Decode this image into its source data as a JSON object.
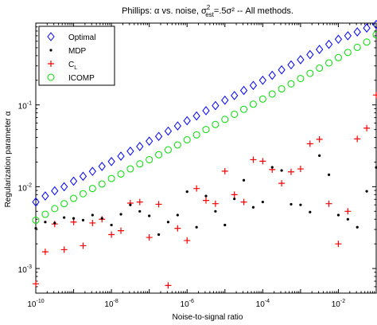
{
  "chart_data": {
    "type": "scatter",
    "title": {
      "prefix": "Phillips: ",
      "alpha": "α",
      "middle": " vs. noise, ",
      "sigma": "σ",
      "sub": "est",
      "sup": "2",
      "suffix": "=.5σ² -- All methods."
    },
    "xlabel": "Noise-to-signal ratio",
    "ylabel": "Regularization parameter α",
    "xscale": "log",
    "yscale": "log",
    "xlim": [
      1e-10,
      0.1
    ],
    "ylim": [
      0.0005,
      1.0
    ],
    "grid": false,
    "legend_position": "top-left",
    "x_ticks": [
      {
        "value": 1e-10,
        "base": "10",
        "exp": "-10"
      },
      {
        "value": 1e-08,
        "base": "10",
        "exp": "-8"
      },
      {
        "value": 1e-06,
        "base": "10",
        "exp": "-6"
      },
      {
        "value": 0.0001,
        "base": "10",
        "exp": "-4"
      },
      {
        "value": 0.01,
        "base": "10",
        "exp": "-2"
      }
    ],
    "y_ticks": [
      {
        "value": 0.001,
        "base": "10",
        "exp": "-3"
      },
      {
        "value": 0.01,
        "base": "10",
        "exp": "-2"
      },
      {
        "value": 0.1,
        "base": "10",
        "exp": "-1"
      }
    ],
    "series": [
      {
        "name": "Optimal",
        "marker": "diamond",
        "color": "#0000ff",
        "x": [
          1e-10,
          1.78e-10,
          3.16e-10,
          5.62e-10,
          1e-09,
          1.78e-09,
          3.16e-09,
          5.62e-09,
          1e-08,
          1.78e-08,
          3.16e-08,
          5.62e-08,
          1e-07,
          1.78e-07,
          3.16e-07,
          5.62e-07,
          1e-06,
          1.78e-06,
          3.16e-06,
          5.62e-06,
          1e-05,
          1.78e-05,
          3.16e-05,
          5.62e-05,
          0.0001,
          0.000178,
          0.000316,
          0.000562,
          0.001,
          0.00178,
          0.00316,
          0.00562,
          0.01,
          0.0178,
          0.0316,
          0.0562,
          0.1
        ],
        "y": [
          0.0065,
          0.0077,
          0.0089,
          0.01,
          0.0117,
          0.0134,
          0.0154,
          0.0177,
          0.0203,
          0.0236,
          0.0272,
          0.031,
          0.0361,
          0.0412,
          0.0478,
          0.0553,
          0.064,
          0.0732,
          0.085,
          0.098,
          0.114,
          0.13,
          0.15,
          0.173,
          0.2,
          0.23,
          0.268,
          0.309,
          0.357,
          0.412,
          0.476,
          0.55,
          0.635,
          0.7,
          0.78,
          0.87,
          0.96
        ]
      },
      {
        "name": "MDP",
        "marker": "dot",
        "color": "#000000",
        "x": [
          1e-10,
          1.78e-10,
          3.16e-10,
          5.62e-10,
          1e-09,
          1.78e-09,
          3.16e-09,
          5.62e-09,
          1e-08,
          1.78e-08,
          3.16e-08,
          5.62e-08,
          1e-07,
          1.78e-07,
          3.16e-07,
          5.62e-07,
          1e-06,
          1.78e-06,
          3.16e-06,
          5.62e-06,
          1e-05,
          1.78e-05,
          3.16e-05,
          5.62e-05,
          0.0001,
          0.000178,
          0.000316,
          0.000562,
          0.001,
          0.00178,
          0.00316,
          0.00562,
          0.01,
          0.0178,
          0.0316,
          0.0562,
          0.1
        ],
        "y": [
          0.0031,
          0.0037,
          0.0036,
          0.0042,
          0.0041,
          0.0039,
          0.0045,
          0.0041,
          0.0034,
          0.0046,
          0.006,
          0.005,
          0.0044,
          0.0026,
          0.0037,
          0.0045,
          0.0087,
          0.0032,
          0.0077,
          0.005,
          0.0034,
          0.0071,
          0.012,
          0.0056,
          0.0065,
          0.0173,
          0.0158,
          0.0061,
          0.006,
          0.0049,
          0.024,
          0.014,
          0.0045,
          0.004,
          0.0032,
          0.0088,
          0.0172
        ]
      },
      {
        "name": "C",
        "subscript": "L",
        "marker": "plus",
        "color": "#ff0000",
        "x": [
          1e-10,
          1.78e-10,
          3.16e-10,
          5.62e-10,
          1e-09,
          1.78e-09,
          3.16e-09,
          5.62e-09,
          1e-08,
          1.78e-08,
          3.16e-08,
          5.62e-08,
          1e-07,
          1.78e-07,
          3.16e-07,
          5.62e-07,
          1e-06,
          1.78e-06,
          3.16e-06,
          5.62e-06,
          1e-05,
          1.78e-05,
          3.16e-05,
          5.62e-05,
          0.0001,
          0.000178,
          0.000316,
          0.000562,
          0.001,
          0.00178,
          0.00316,
          0.00562,
          0.01,
          0.0178,
          0.0316,
          0.0562,
          0.1
        ],
        "y": [
          0.00065,
          0.0016,
          0.0035,
          0.0017,
          0.0037,
          0.0019,
          0.0036,
          0.004,
          0.0026,
          0.0029,
          0.0063,
          0.0065,
          0.0024,
          0.0061,
          0.00062,
          0.0031,
          0.0022,
          0.0095,
          0.0068,
          0.0062,
          0.0155,
          0.008,
          0.0065,
          0.0214,
          0.0205,
          0.0162,
          0.011,
          0.0152,
          0.0165,
          0.0335,
          0.038,
          0.0062,
          0.002,
          0.005,
          0.0384,
          0.052,
          0.132
        ]
      },
      {
        "name": "ICOMP",
        "marker": "circle",
        "color": "#00dd00",
        "x": [
          1e-10,
          1.78e-10,
          3.16e-10,
          5.62e-10,
          1e-09,
          1.78e-09,
          3.16e-09,
          5.62e-09,
          1e-08,
          1.78e-08,
          3.16e-08,
          5.62e-08,
          1e-07,
          1.78e-07,
          3.16e-07,
          5.62e-07,
          1e-06,
          1.78e-06,
          3.16e-06,
          5.62e-06,
          1e-05,
          1.78e-05,
          3.16e-05,
          5.62e-05,
          0.0001,
          0.000178,
          0.000316,
          0.000562,
          0.001,
          0.00178,
          0.00316,
          0.00562,
          0.01,
          0.0178,
          0.0316,
          0.0562,
          0.1
        ],
        "y": [
          0.0039,
          0.0046,
          0.0054,
          0.0062,
          0.0072,
          0.0082,
          0.0095,
          0.0108,
          0.0126,
          0.0143,
          0.0165,
          0.019,
          0.0214,
          0.0246,
          0.0282,
          0.0324,
          0.0375,
          0.043,
          0.05,
          0.0576,
          0.0665,
          0.0768,
          0.0884,
          0.102,
          0.118,
          0.136,
          0.157,
          0.181,
          0.21,
          0.243,
          0.282,
          0.326,
          0.379,
          0.438,
          0.506,
          0.587,
          0.72
        ]
      }
    ]
  }
}
